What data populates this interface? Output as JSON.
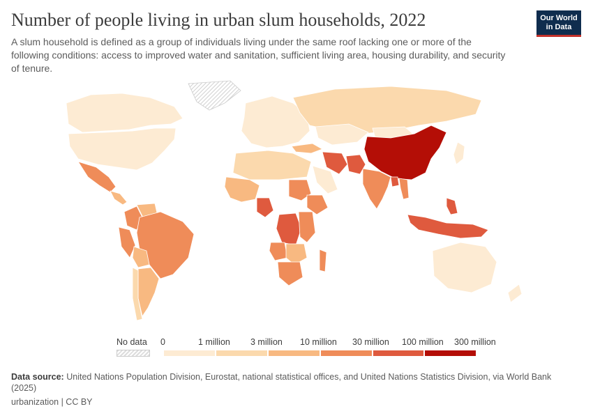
{
  "header": {
    "title": "Number of people living in urban slum households, 2022",
    "subtitle": "A slum household is defined as a group of individuals living under the same roof lacking one or more of the following conditions: access to improved water and sanitation, sufficient living area, housing durability, and security of tenure."
  },
  "logo": {
    "line1": "Our World",
    "line2": "in Data"
  },
  "legend": {
    "no_data_label": "No data",
    "ticks": [
      "0",
      "1 million",
      "3 million",
      "10 million",
      "30 million",
      "100 million",
      "300 million"
    ],
    "colors": [
      "#fdebd3",
      "#fbd9ad",
      "#f8b981",
      "#ef8c59",
      "#df5a3e",
      "#b40e06"
    ]
  },
  "colors": {
    "ocean": "#ffffff",
    "land_border": "#ffffff",
    "no_data": "#e6e6e6"
  },
  "regions": [
    {
      "name": "Canada",
      "bin": 0
    },
    {
      "name": "United States",
      "bin": 0
    },
    {
      "name": "Greenland",
      "bin": -1
    },
    {
      "name": "Mexico",
      "bin": 3
    },
    {
      "name": "Central America",
      "bin": 2
    },
    {
      "name": "Colombia",
      "bin": 3
    },
    {
      "name": "Venezuela",
      "bin": 2
    },
    {
      "name": "Peru",
      "bin": 3
    },
    {
      "name": "Brazil",
      "bin": 3
    },
    {
      "name": "Bolivia",
      "bin": 2
    },
    {
      "name": "Argentina",
      "bin": 2
    },
    {
      "name": "Chile",
      "bin": 1
    },
    {
      "name": "Europe",
      "bin": 0
    },
    {
      "name": "Russia",
      "bin": 1
    },
    {
      "name": "Turkey",
      "bin": 2
    },
    {
      "name": "Kazakhstan",
      "bin": 0
    },
    {
      "name": "Mongolia",
      "bin": 0
    },
    {
      "name": "China",
      "bin": 5
    },
    {
      "name": "India",
      "bin": 3
    },
    {
      "name": "Pakistan",
      "bin": 4
    },
    {
      "name": "Iran",
      "bin": 4
    },
    {
      "name": "Bangladesh",
      "bin": 4
    },
    {
      "name": "Myanmar",
      "bin": 3
    },
    {
      "name": "Indonesia",
      "bin": 4
    },
    {
      "name": "Philippines",
      "bin": 4
    },
    {
      "name": "Japan",
      "bin": 0
    },
    {
      "name": "Saudi Arabia",
      "bin": 0
    },
    {
      "name": "North Africa",
      "bin": 1
    },
    {
      "name": "West Africa",
      "bin": 2
    },
    {
      "name": "Nigeria",
      "bin": 4
    },
    {
      "name": "Sudan",
      "bin": 3
    },
    {
      "name": "Ethiopia",
      "bin": 3
    },
    {
      "name": "DR Congo",
      "bin": 4
    },
    {
      "name": "East Africa",
      "bin": 3
    },
    {
      "name": "Angola",
      "bin": 3
    },
    {
      "name": "Southern Africa",
      "bin": 2
    },
    {
      "name": "South Africa",
      "bin": 3
    },
    {
      "name": "Madagascar",
      "bin": 3
    },
    {
      "name": "Australia",
      "bin": 0
    },
    {
      "name": "New Zealand",
      "bin": 0
    }
  ],
  "source": {
    "label": "Data source:",
    "text": "United Nations Population Division, Eurostat, national statistical offices, and United Nations Statistics Division, via World Bank (2025)"
  },
  "footer": "urbanization | CC BY"
}
